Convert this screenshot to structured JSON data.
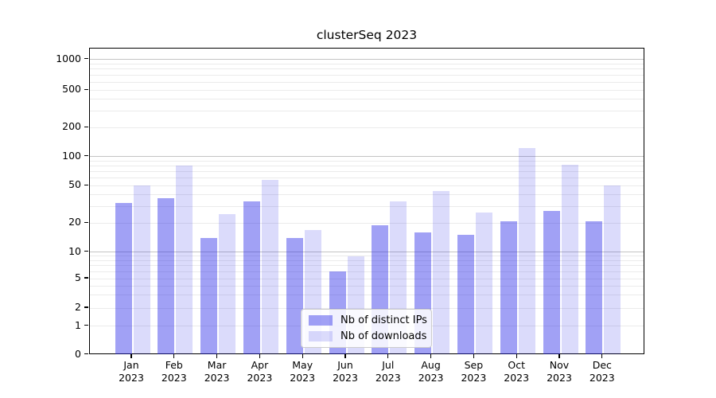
{
  "figure": {
    "background": "#ffffff"
  },
  "chart_data": {
    "type": "bar",
    "title": "clusterSeq 2023",
    "categories": [
      "Jan",
      "Feb",
      "Mar",
      "Apr",
      "May",
      "Jun",
      "Jul",
      "Aug",
      "Sep",
      "Oct",
      "Nov",
      "Dec"
    ],
    "category_sublabel": "2023",
    "series": [
      {
        "name": "Nb of distinct IPs",
        "color": "rgba(30,30,230,0.42)",
        "values": [
          33,
          37,
          14,
          34,
          14,
          6,
          19,
          16,
          15,
          21,
          27,
          21
        ]
      },
      {
        "name": "Nb of downloads",
        "color": "rgba(30,30,230,0.16)",
        "values": [
          50,
          80,
          25,
          57,
          17,
          9,
          34,
          44,
          26,
          122,
          82,
          50
        ]
      }
    ],
    "yscale": "symlog",
    "yticks": [
      0,
      1,
      2,
      5,
      10,
      20,
      50,
      100,
      200,
      500,
      1000
    ],
    "major_grid_values": [
      10,
      100,
      1000
    ],
    "grid": true,
    "legend_position": "lower center",
    "colors": {
      "minor_grid": "#ebebeb",
      "major_grid": "#c4c4c4",
      "spine": "#000000",
      "text": "#000000"
    }
  }
}
